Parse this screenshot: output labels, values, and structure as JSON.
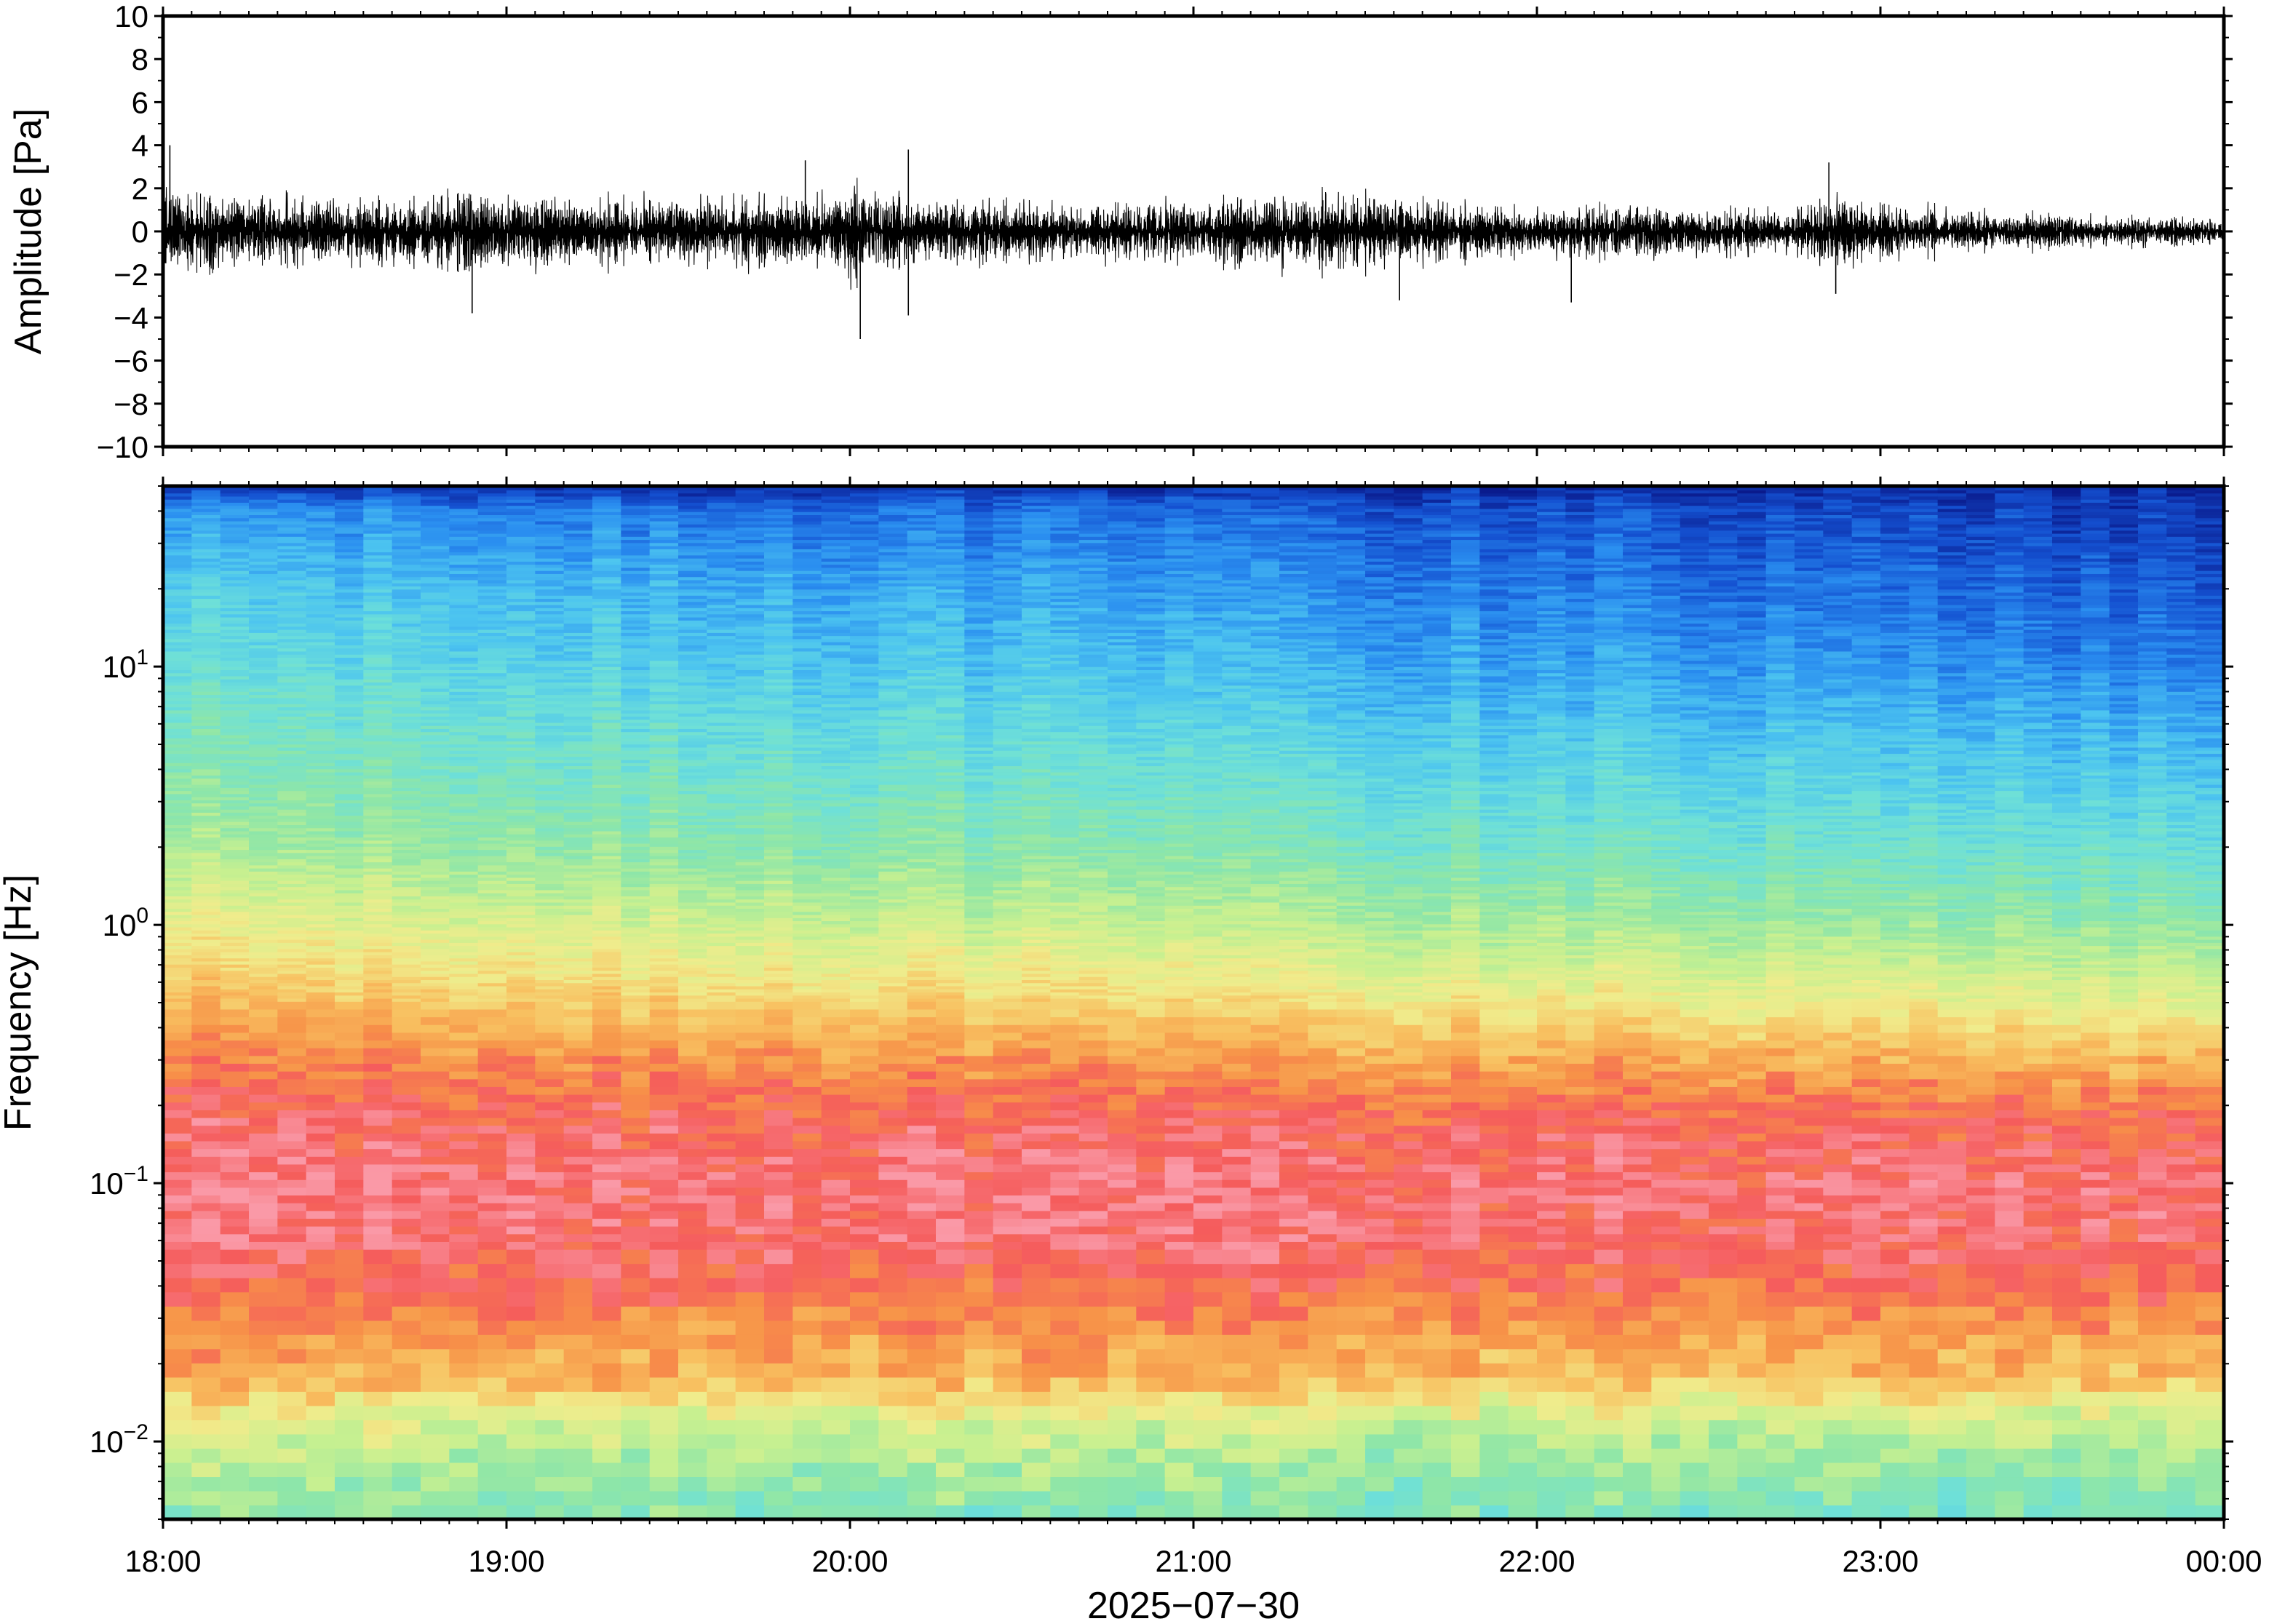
{
  "chart_data": [
    {
      "type": "line",
      "panel": "waveform",
      "ylabel": "Amplitude [Pa]",
      "ylim": [
        -10,
        10
      ],
      "yticks": [
        -10,
        -8,
        -6,
        -4,
        -2,
        0,
        2,
        4,
        6,
        8,
        10
      ],
      "ytick_labels": [
        "−10",
        "−8",
        "−6",
        "−4",
        "−2",
        "0",
        "2",
        "4",
        "6",
        "8",
        "10"
      ],
      "xlim": [
        "18:00",
        "00:00"
      ],
      "envelope": {
        "t_hours": [
          0.0,
          0.25,
          0.5,
          0.75,
          0.9,
          1.0,
          1.25,
          1.5,
          1.75,
          1.9,
          2.0,
          2.1,
          2.25,
          2.5,
          2.75,
          3.0,
          3.25,
          3.5,
          3.75,
          4.0,
          4.25,
          4.5,
          4.75,
          4.9,
          5.0,
          5.25,
          5.5,
          5.75,
          6.0
        ],
        "max": [
          3.0,
          2.6,
          2.4,
          2.3,
          2.5,
          2.6,
          2.4,
          2.3,
          2.5,
          2.6,
          3.2,
          2.8,
          2.3,
          2.1,
          2.0,
          2.2,
          2.4,
          2.5,
          2.0,
          1.7,
          1.9,
          1.6,
          1.6,
          2.4,
          1.9,
          1.4,
          1.1,
          1.0,
          0.9
        ],
        "min": [
          -3.0,
          -2.6,
          -2.4,
          -2.5,
          -2.7,
          -2.6,
          -2.4,
          -2.3,
          -2.5,
          -2.7,
          -3.5,
          -2.9,
          -2.4,
          -2.2,
          -2.1,
          -2.2,
          -2.5,
          -2.6,
          -2.1,
          -1.9,
          -2.0,
          -1.8,
          -1.7,
          -2.5,
          -2.0,
          -1.5,
          -1.2,
          -1.1,
          -1.0
        ]
      },
      "spikes": [
        {
          "t_hours": 0.02,
          "amplitude": 4.0
        },
        {
          "t_hours": 0.9,
          "amplitude": -3.8
        },
        {
          "t_hours": 2.03,
          "amplitude": -5.0
        },
        {
          "t_hours": 2.17,
          "amplitude": 3.8
        },
        {
          "t_hours": 2.17,
          "amplitude": -3.9
        },
        {
          "t_hours": 1.87,
          "amplitude": 3.3
        },
        {
          "t_hours": 3.6,
          "amplitude": -3.2
        },
        {
          "t_hours": 4.1,
          "amplitude": -3.3
        },
        {
          "t_hours": 4.85,
          "amplitude": 3.2
        },
        {
          "t_hours": 4.87,
          "amplitude": -2.9
        }
      ]
    },
    {
      "type": "heatmap",
      "panel": "spectrogram",
      "ylabel": "Frequency [Hz]",
      "yscale": "log",
      "ylim": [
        0.005,
        50
      ],
      "ytick_labels": [
        {
          "value": 0.01,
          "base": "10",
          "exp": "−2"
        },
        {
          "value": 0.1,
          "base": "10",
          "exp": "−1"
        },
        {
          "value": 1,
          "base": "10",
          "exp": "0"
        },
        {
          "value": 10,
          "base": "10",
          "exp": "1"
        }
      ],
      "xlabel": "2025−07−30",
      "xlim": [
        "18:00",
        "00:00"
      ],
      "xtick_labels": [
        "18:00",
        "19:00",
        "20:00",
        "21:00",
        "22:00",
        "23:00",
        "00:00"
      ],
      "colormap": [
        "#0a1a8c",
        "#1450d0",
        "#2a8ef0",
        "#4cc4f0",
        "#6ee0d8",
        "#8ee6a8",
        "#c8f090",
        "#f0ec8c",
        "#f8c060",
        "#f79248",
        "#f55c5c",
        "#fa9aa8"
      ],
      "power_profile": {
        "freq_hz": [
          0.005,
          0.008,
          0.012,
          0.018,
          0.025,
          0.035,
          0.06,
          0.1,
          0.18,
          0.3,
          0.5,
          1.0,
          2.0,
          5.0,
          10.0,
          20.0,
          40.0,
          50.0
        ],
        "level_start": [
          0.45,
          0.52,
          0.6,
          0.78,
          0.8,
          0.88,
          0.95,
          0.97,
          0.92,
          0.85,
          0.74,
          0.62,
          0.5,
          0.42,
          0.36,
          0.3,
          0.2,
          0.05
        ],
        "level_end": [
          0.4,
          0.45,
          0.55,
          0.72,
          0.78,
          0.85,
          0.92,
          0.93,
          0.88,
          0.74,
          0.6,
          0.45,
          0.35,
          0.25,
          0.16,
          0.1,
          0.05,
          0.02
        ]
      }
    }
  ]
}
